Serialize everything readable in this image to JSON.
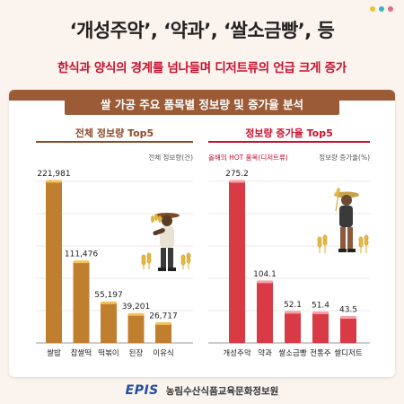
{
  "header": {
    "headline": "‘개성주악’, ‘약과’, ‘쌀소금빵’, 등",
    "subline": "한식과 양식의 경계를 넘나들며 디저트류의 언급 크게 증가"
  },
  "banner": {
    "title": "쌀 가공 주요 품목별 정보량 및 증가율 분석"
  },
  "footer": {
    "logo": "EPIS",
    "org": "농림수산식품교육문화정보원"
  },
  "colors": {
    "stripe": "#9b5b36",
    "left_bar": "#c07f2f",
    "right_bar": "#d93b46",
    "title_left": "#8a4a2a",
    "title_right": "#c8102e",
    "dots": [
      "#f2c230",
      "#3fb3c3",
      "#e56a8e"
    ]
  },
  "chart_data": [
    {
      "type": "bar",
      "title": "전체 정보량 Top5",
      "unit_label": "전체 정보량(건)",
      "categories": [
        "쌀밥",
        "찹쌀떡",
        "떡볶이",
        "된장",
        "이유식"
      ],
      "values": [
        221981,
        111476,
        55197,
        39201,
        26717
      ],
      "value_labels": [
        "221,981",
        "111,476",
        "55,197",
        "39,201",
        "26,717"
      ],
      "ylim": [
        0,
        221981
      ],
      "grid": true,
      "legend": "none"
    },
    {
      "type": "bar",
      "title": "정보량 증가율 Top5",
      "hot_label": "올해의 HOT 품목(디저트류)",
      "unit_label": "정보량 증가율(%)",
      "categories": [
        "개성주악",
        "약과",
        "쌀소금빵",
        "전통주",
        "쌀디저트"
      ],
      "values": [
        275.2,
        104.1,
        52.1,
        51.4,
        43.5
      ],
      "value_labels": [
        "275.2",
        "104.1",
        "52.1",
        "51.4",
        "43.5"
      ],
      "ylim": [
        0,
        275.2
      ],
      "grid": true,
      "legend": "none"
    }
  ]
}
